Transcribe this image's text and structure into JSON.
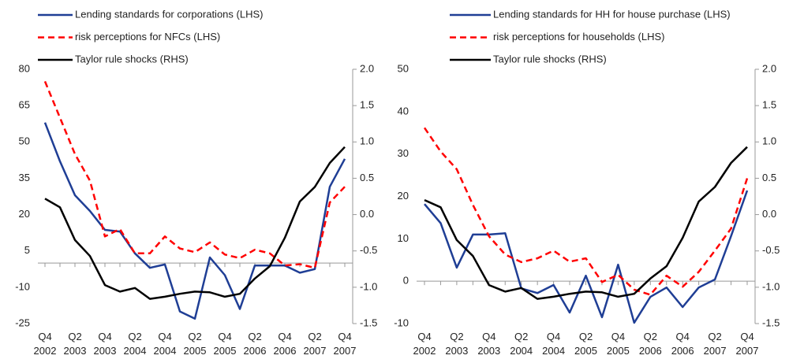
{
  "chart_data": [
    {
      "type": "line",
      "categories": [
        "Q4 2002",
        null,
        "Q2 2003",
        null,
        "Q4 2003",
        null,
        "Q2 2004",
        null,
        "Q4 2004",
        null,
        "Q2 2005",
        null,
        "Q4 2005",
        null,
        "Q2 2006",
        null,
        "Q4 2006",
        null,
        "Q2 2007",
        null,
        "Q4 2007"
      ],
      "series": [
        {
          "name": "Lending standards for corporations (LHS)",
          "color": "#1f3e95",
          "dash": false,
          "axis": "y",
          "values": [
            58,
            42,
            28,
            21.5,
            13.7,
            13,
            4,
            -2,
            -0.6,
            -20,
            -23,
            2.3,
            -5,
            -19,
            -1,
            -1,
            -1,
            -4,
            -2.5,
            31.5,
            43
          ]
        },
        {
          "name": "risk perceptions for NFCs (LHS)",
          "color": "#ff0000",
          "dash": true,
          "axis": "y",
          "values": [
            75,
            60,
            45,
            34,
            11,
            14,
            4,
            4,
            11,
            6,
            4.5,
            8.5,
            3.5,
            2,
            5.5,
            4,
            -1,
            -0.5,
            -2,
            25,
            31.5
          ]
        },
        {
          "name": "Taylor rule shocks (RHS)",
          "color": "#000000",
          "dash": false,
          "axis": "y2",
          "values": [
            0.22,
            0.1,
            -0.35,
            -0.57,
            -0.97,
            -1.06,
            -1.01,
            -1.16,
            -1.13,
            -1.09,
            -1.06,
            -1.07,
            -1.13,
            -1.09,
            -0.88,
            -0.71,
            -0.32,
            0.18,
            0.38,
            0.71,
            0.93
          ]
        }
      ],
      "ylim": [
        -25,
        80
      ],
      "yticks": [
        -25,
        -10,
        5,
        20,
        35,
        50,
        65,
        80
      ],
      "y2lim": [
        -1.5,
        2.0
      ],
      "y2ticks": [
        -1.5,
        {
          "value": -1,
          "label": "-1.0"
        },
        -0.5,
        {
          "value": 0,
          "label": "0.0"
        },
        0.5,
        {
          "value": 1,
          "label": "1.0"
        },
        1.5,
        {
          "value": 2,
          "label": "2.0"
        }
      ]
    },
    {
      "type": "line",
      "categories": [
        "Q4 2002",
        null,
        "Q2 2003",
        null,
        "Q4 2003",
        null,
        "Q2 2004",
        null,
        "Q4 2004",
        null,
        "Q2 2005",
        null,
        "Q4 2005",
        null,
        "Q2 2006",
        null,
        "Q4 2006",
        null,
        "Q2 2007",
        null,
        "Q4 2007"
      ],
      "series": [
        {
          "name": "Lending standards for HH for house purchase (LHS)",
          "color": "#1f3e95",
          "dash": false,
          "axis": "y",
          "values": [
            18.2,
            13.7,
            3.2,
            11,
            11,
            11.3,
            -1.7,
            -2.8,
            -0.9,
            -7.4,
            1.3,
            -8.5,
            3.9,
            -9.8,
            -3.7,
            -1.5,
            -6.1,
            -1.5,
            0.4,
            10.6,
            21.4
          ]
        },
        {
          "name": "risk perceptions for households (LHS)",
          "color": "#ff0000",
          "dash": true,
          "axis": "y",
          "values": [
            36.2,
            30.6,
            26.4,
            18,
            10.6,
            6.3,
            4.5,
            5.4,
            7.2,
            4.6,
            5.4,
            -0.2,
            1.5,
            -2,
            -3.2,
            1.3,
            -1.3,
            2.2,
            7.2,
            12.4,
            24.3
          ]
        },
        {
          "name": "Taylor rule shocks (RHS)",
          "color": "#000000",
          "dash": false,
          "axis": "y2",
          "values": [
            0.2,
            0.1,
            -0.35,
            -0.57,
            -0.97,
            -1.06,
            -1.01,
            -1.16,
            -1.13,
            -1.09,
            -1.06,
            -1.07,
            -1.13,
            -1.09,
            -0.88,
            -0.71,
            -0.32,
            0.18,
            0.38,
            0.71,
            0.93
          ]
        }
      ],
      "ylim": [
        -10,
        50
      ],
      "yticks": [
        -10,
        0,
        10,
        20,
        30,
        40,
        50
      ],
      "y2lim": [
        -1.5,
        2.0
      ],
      "y2ticks": [
        -1.5,
        {
          "value": -1,
          "label": "-1.0"
        },
        -0.5,
        {
          "value": 0,
          "label": "0.0"
        },
        0.5,
        {
          "value": 1,
          "label": "1.0"
        },
        1.5,
        {
          "value": 2,
          "label": "2.0"
        }
      ]
    }
  ]
}
